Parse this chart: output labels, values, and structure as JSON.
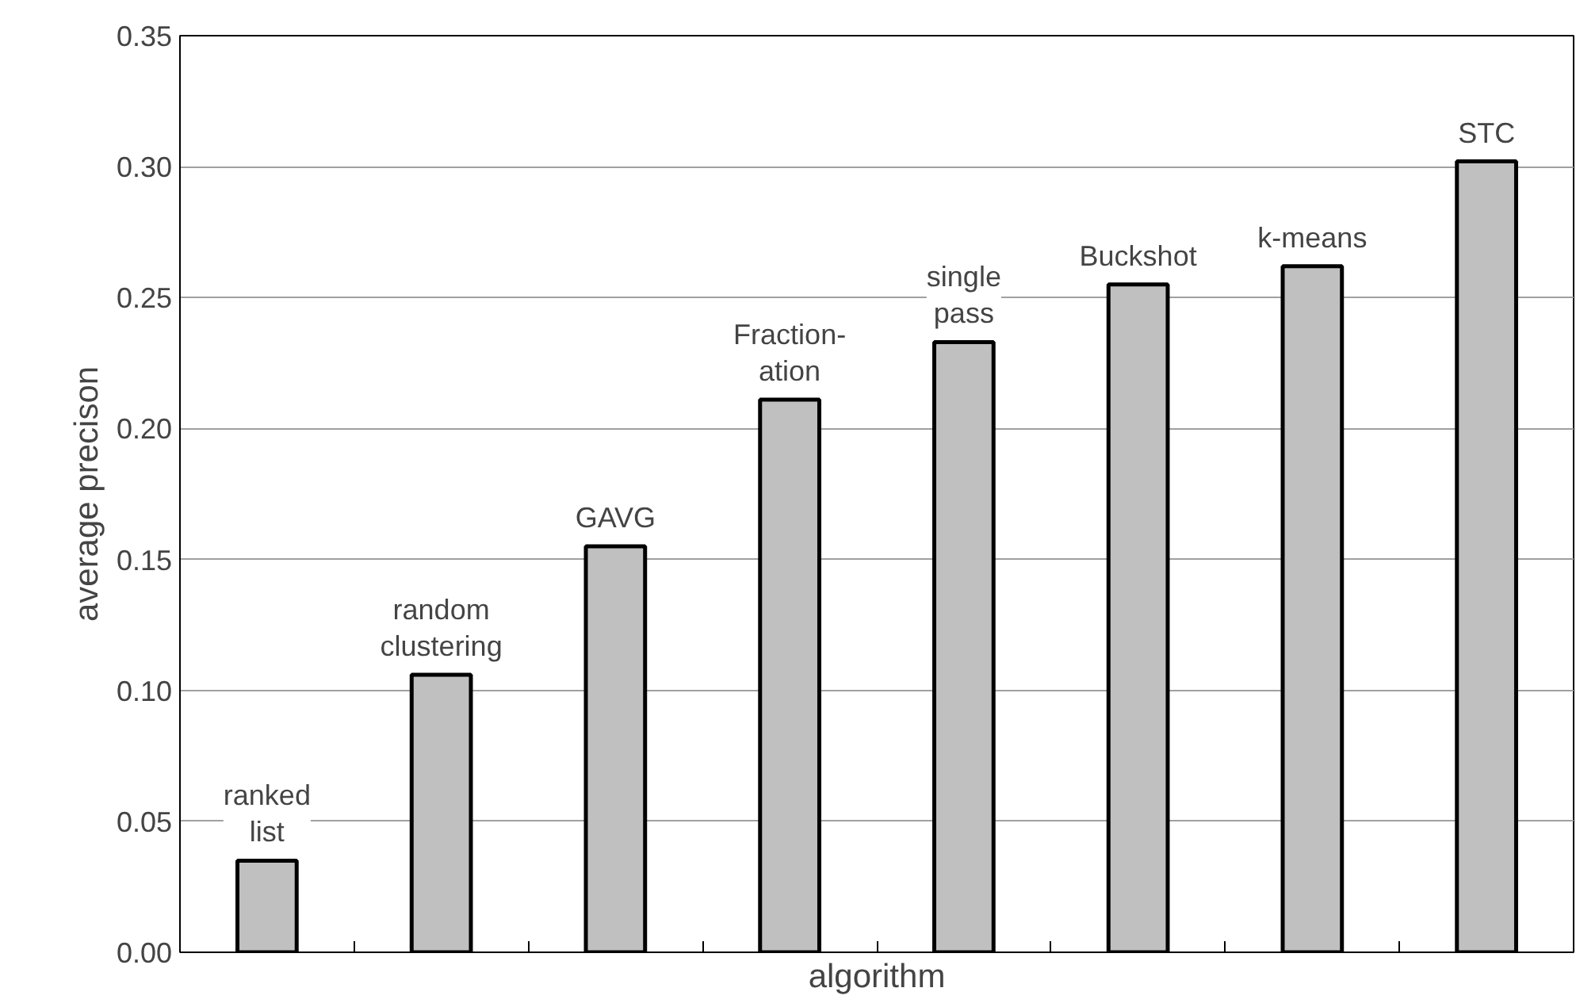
{
  "chart_data": {
    "type": "bar",
    "xlabel": "algorithm",
    "ylabel": "average precison",
    "categories": [
      "ranked\nlist",
      "random\nclustering",
      "GAVG",
      "Fraction-\nation",
      "single\npass",
      "Buckshot",
      "k-means",
      "STC"
    ],
    "values": [
      0.035,
      0.106,
      0.155,
      0.211,
      0.233,
      0.255,
      0.262,
      0.302
    ],
    "color": "#c0c0c0",
    "ylim": [
      0,
      0.35
    ],
    "yticks": [
      {
        "value": 0,
        "label": "0.00"
      },
      {
        "value": 0.05,
        "label": "0.05"
      },
      {
        "value": 0.1,
        "label": "0.10"
      },
      {
        "value": 0.15,
        "label": "0.15"
      },
      {
        "value": 0.2,
        "label": "0.20"
      },
      {
        "value": 0.25,
        "label": "0.25"
      },
      {
        "value": 0.3,
        "label": "0.30"
      },
      {
        "value": 0.35,
        "label": "0.35"
      }
    ],
    "grid": "y",
    "tick_labels": "y"
  }
}
